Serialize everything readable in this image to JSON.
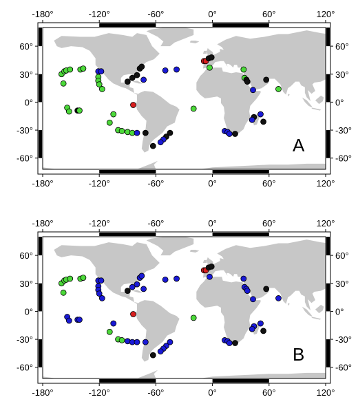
{
  "panels": [
    {
      "label": "A",
      "lon_ticks": [
        "-180°",
        "-120°",
        "-60°",
        "0°",
        "60°",
        "120°"
      ],
      "lat_ticks": [
        "60°",
        "30°",
        "0°",
        "-30°",
        "-60°"
      ],
      "points": [
        {
          "lon": -160,
          "lat": 30,
          "c": "green"
        },
        {
          "lon": -157,
          "lat": 33,
          "c": "green"
        },
        {
          "lon": -155,
          "lat": 34,
          "c": "green"
        },
        {
          "lon": -151,
          "lat": 35,
          "c": "green"
        },
        {
          "lon": -140,
          "lat": 35,
          "c": "green"
        },
        {
          "lon": -137,
          "lat": 36,
          "c": "green"
        },
        {
          "lon": -158,
          "lat": 20,
          "c": "green"
        },
        {
          "lon": -121,
          "lat": 33,
          "c": "blue"
        },
        {
          "lon": -118,
          "lat": 33,
          "c": "blue"
        },
        {
          "lon": -121,
          "lat": 27,
          "c": "green"
        },
        {
          "lon": -121,
          "lat": 23,
          "c": "green"
        },
        {
          "lon": -120,
          "lat": 19,
          "c": "green"
        },
        {
          "lon": -117,
          "lat": 14,
          "c": "green"
        },
        {
          "lon": -154,
          "lat": -6,
          "c": "green"
        },
        {
          "lon": -152,
          "lat": -10,
          "c": "green"
        },
        {
          "lon": -143,
          "lat": -9,
          "c": "black"
        },
        {
          "lon": -141,
          "lat": -9,
          "c": "green"
        },
        {
          "lon": -109,
          "lat": -22,
          "c": "green"
        },
        {
          "lon": -105,
          "lat": -13,
          "c": "green"
        },
        {
          "lon": -100,
          "lat": -30,
          "c": "green"
        },
        {
          "lon": -96,
          "lat": -31,
          "c": "green"
        },
        {
          "lon": -90,
          "lat": -32,
          "c": "green"
        },
        {
          "lon": -85,
          "lat": -33,
          "c": "green"
        },
        {
          "lon": -80,
          "lat": -33,
          "c": "blue"
        },
        {
          "lon": -71,
          "lat": -33,
          "c": "black"
        },
        {
          "lon": -84,
          "lat": -3,
          "c": "red"
        },
        {
          "lon": -90,
          "lat": 22,
          "c": "black"
        },
        {
          "lon": -85,
          "lat": 26,
          "c": "black"
        },
        {
          "lon": -80,
          "lat": 29,
          "c": "black"
        },
        {
          "lon": -77,
          "lat": 36,
          "c": "black"
        },
        {
          "lon": -75,
          "lat": 38,
          "c": "black"
        },
        {
          "lon": -73,
          "lat": 24,
          "c": "blue"
        },
        {
          "lon": -50,
          "lat": 34,
          "c": "blue"
        },
        {
          "lon": -38,
          "lat": 35,
          "c": "blue"
        },
        {
          "lon": -20,
          "lat": -7,
          "c": "green"
        },
        {
          "lon": -45,
          "lat": -33,
          "c": "black"
        },
        {
          "lon": -49,
          "lat": -37,
          "c": "black"
        },
        {
          "lon": -52,
          "lat": -40,
          "c": "blue"
        },
        {
          "lon": -55,
          "lat": -43,
          "c": "blue"
        },
        {
          "lon": -63,
          "lat": -47,
          "c": "black"
        },
        {
          "lon": -9,
          "lat": 44,
          "c": "red"
        },
        {
          "lon": -7,
          "lat": 44,
          "c": "red"
        },
        {
          "lon": -4,
          "lat": 47,
          "c": "black"
        },
        {
          "lon": -1,
          "lat": 48,
          "c": "black"
        },
        {
          "lon": -3,
          "lat": 37,
          "c": "green"
        },
        {
          "lon": 33,
          "lat": 35,
          "c": "green"
        },
        {
          "lon": 34,
          "lat": 26,
          "c": "green"
        },
        {
          "lon": 36,
          "lat": 24,
          "c": "black"
        },
        {
          "lon": 37,
          "lat": 22,
          "c": "black"
        },
        {
          "lon": 43,
          "lat": 13,
          "c": "blue"
        },
        {
          "lon": 57,
          "lat": 24,
          "c": "black"
        },
        {
          "lon": 70,
          "lat": 14,
          "c": "green"
        },
        {
          "lon": 51,
          "lat": -13,
          "c": "blue"
        },
        {
          "lon": 44,
          "lat": -16,
          "c": "black"
        },
        {
          "lon": 42,
          "lat": -19,
          "c": "blue"
        },
        {
          "lon": 54,
          "lat": -21,
          "c": "black"
        },
        {
          "lon": 13,
          "lat": -31,
          "c": "blue"
        },
        {
          "lon": 16,
          "lat": -32,
          "c": "blue"
        },
        {
          "lon": 18,
          "lat": -34,
          "c": "blue"
        },
        {
          "lon": 24,
          "lat": -34,
          "c": "black"
        }
      ]
    },
    {
      "label": "B",
      "lon_ticks": [
        "-180°",
        "-120°",
        "-60°",
        "0°",
        "60°",
        "120°"
      ],
      "lat_ticks": [
        "60°",
        "30°",
        "0°",
        "-30°",
        "-60°"
      ],
      "points": [
        {
          "lon": -160,
          "lat": 30,
          "c": "green"
        },
        {
          "lon": -157,
          "lat": 33,
          "c": "green"
        },
        {
          "lon": -155,
          "lat": 34,
          "c": "green"
        },
        {
          "lon": -151,
          "lat": 35,
          "c": "green"
        },
        {
          "lon": -140,
          "lat": 35,
          "c": "green"
        },
        {
          "lon": -137,
          "lat": 36,
          "c": "green"
        },
        {
          "lon": -158,
          "lat": 20,
          "c": "green"
        },
        {
          "lon": -121,
          "lat": 33,
          "c": "blue"
        },
        {
          "lon": -118,
          "lat": 33,
          "c": "blue"
        },
        {
          "lon": -121,
          "lat": 27,
          "c": "blue"
        },
        {
          "lon": -121,
          "lat": 23,
          "c": "blue"
        },
        {
          "lon": -120,
          "lat": 19,
          "c": "blue"
        },
        {
          "lon": -117,
          "lat": 14,
          "c": "blue"
        },
        {
          "lon": -154,
          "lat": -6,
          "c": "blue"
        },
        {
          "lon": -152,
          "lat": -10,
          "c": "blue"
        },
        {
          "lon": -143,
          "lat": -9,
          "c": "blue"
        },
        {
          "lon": -141,
          "lat": -9,
          "c": "blue"
        },
        {
          "lon": -109,
          "lat": -22,
          "c": "green"
        },
        {
          "lon": -105,
          "lat": -13,
          "c": "blue"
        },
        {
          "lon": -100,
          "lat": -30,
          "c": "green"
        },
        {
          "lon": -96,
          "lat": -31,
          "c": "green"
        },
        {
          "lon": -90,
          "lat": -32,
          "c": "blue"
        },
        {
          "lon": -85,
          "lat": -33,
          "c": "blue"
        },
        {
          "lon": -80,
          "lat": -33,
          "c": "blue"
        },
        {
          "lon": -71,
          "lat": -33,
          "c": "blue"
        },
        {
          "lon": -84,
          "lat": -3,
          "c": "red"
        },
        {
          "lon": -90,
          "lat": 22,
          "c": "black"
        },
        {
          "lon": -85,
          "lat": 26,
          "c": "blue"
        },
        {
          "lon": -80,
          "lat": 29,
          "c": "blue"
        },
        {
          "lon": -77,
          "lat": 36,
          "c": "blue"
        },
        {
          "lon": -75,
          "lat": 38,
          "c": "blue"
        },
        {
          "lon": -73,
          "lat": 24,
          "c": "blue"
        },
        {
          "lon": -50,
          "lat": 34,
          "c": "blue"
        },
        {
          "lon": -38,
          "lat": 35,
          "c": "blue"
        },
        {
          "lon": -20,
          "lat": -7,
          "c": "green"
        },
        {
          "lon": -45,
          "lat": -33,
          "c": "blue"
        },
        {
          "lon": -49,
          "lat": -37,
          "c": "blue"
        },
        {
          "lon": -52,
          "lat": -40,
          "c": "blue"
        },
        {
          "lon": -55,
          "lat": -43,
          "c": "blue"
        },
        {
          "lon": -63,
          "lat": -47,
          "c": "black"
        },
        {
          "lon": -9,
          "lat": 44,
          "c": "red"
        },
        {
          "lon": -7,
          "lat": 44,
          "c": "red"
        },
        {
          "lon": -4,
          "lat": 47,
          "c": "black"
        },
        {
          "lon": -1,
          "lat": 48,
          "c": "black"
        },
        {
          "lon": -3,
          "lat": 37,
          "c": "blue"
        },
        {
          "lon": 33,
          "lat": 35,
          "c": "blue"
        },
        {
          "lon": 34,
          "lat": 26,
          "c": "blue"
        },
        {
          "lon": 36,
          "lat": 24,
          "c": "blue"
        },
        {
          "lon": 37,
          "lat": 22,
          "c": "blue"
        },
        {
          "lon": 43,
          "lat": 13,
          "c": "blue"
        },
        {
          "lon": 57,
          "lat": 24,
          "c": "black"
        },
        {
          "lon": 70,
          "lat": 14,
          "c": "blue"
        },
        {
          "lon": 51,
          "lat": -13,
          "c": "blue"
        },
        {
          "lon": 44,
          "lat": -16,
          "c": "blue"
        },
        {
          "lon": 42,
          "lat": -19,
          "c": "blue"
        },
        {
          "lon": 54,
          "lat": -21,
          "c": "black"
        },
        {
          "lon": 13,
          "lat": -31,
          "c": "blue"
        },
        {
          "lon": 16,
          "lat": -32,
          "c": "blue"
        },
        {
          "lon": 18,
          "lat": -34,
          "c": "blue"
        },
        {
          "lon": 24,
          "lat": -34,
          "c": "black"
        }
      ]
    }
  ],
  "colors": {
    "land": "#c7c7c7",
    "frame": "#000000",
    "green": "#4cd93a",
    "blue": "#1a1ad6",
    "black": "#111111",
    "red": "#d81e1e"
  }
}
